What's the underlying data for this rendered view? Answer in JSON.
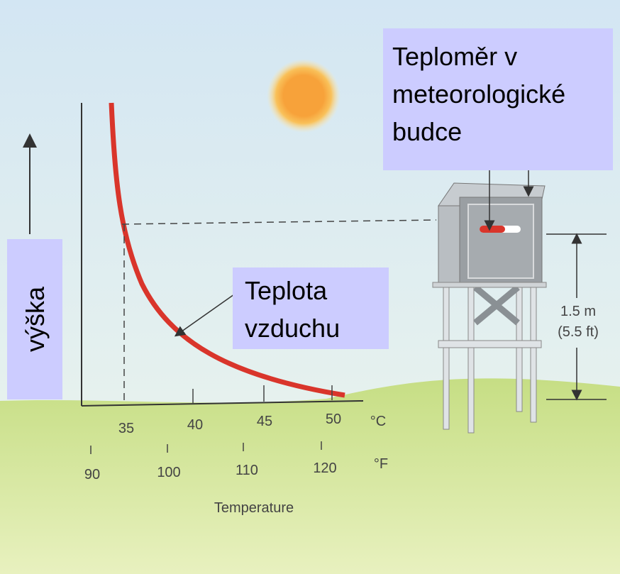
{
  "labels": {
    "height_axis": "výška",
    "air_temperature": [
      "Teplota",
      "vzduchu"
    ],
    "thermometer": [
      "Teploměr v",
      "meteorologické",
      "budce"
    ]
  },
  "axis": {
    "celsius_ticks": [
      "35",
      "40",
      "45",
      "50"
    ],
    "celsius_unit": "°C",
    "fahrenheit_ticks": [
      "90",
      "100",
      "110",
      "120"
    ],
    "fahrenheit_unit": "°F",
    "title": "Temperature"
  },
  "shelter_height": [
    "1.5 m",
    "(5.5 ft)"
  ]
}
